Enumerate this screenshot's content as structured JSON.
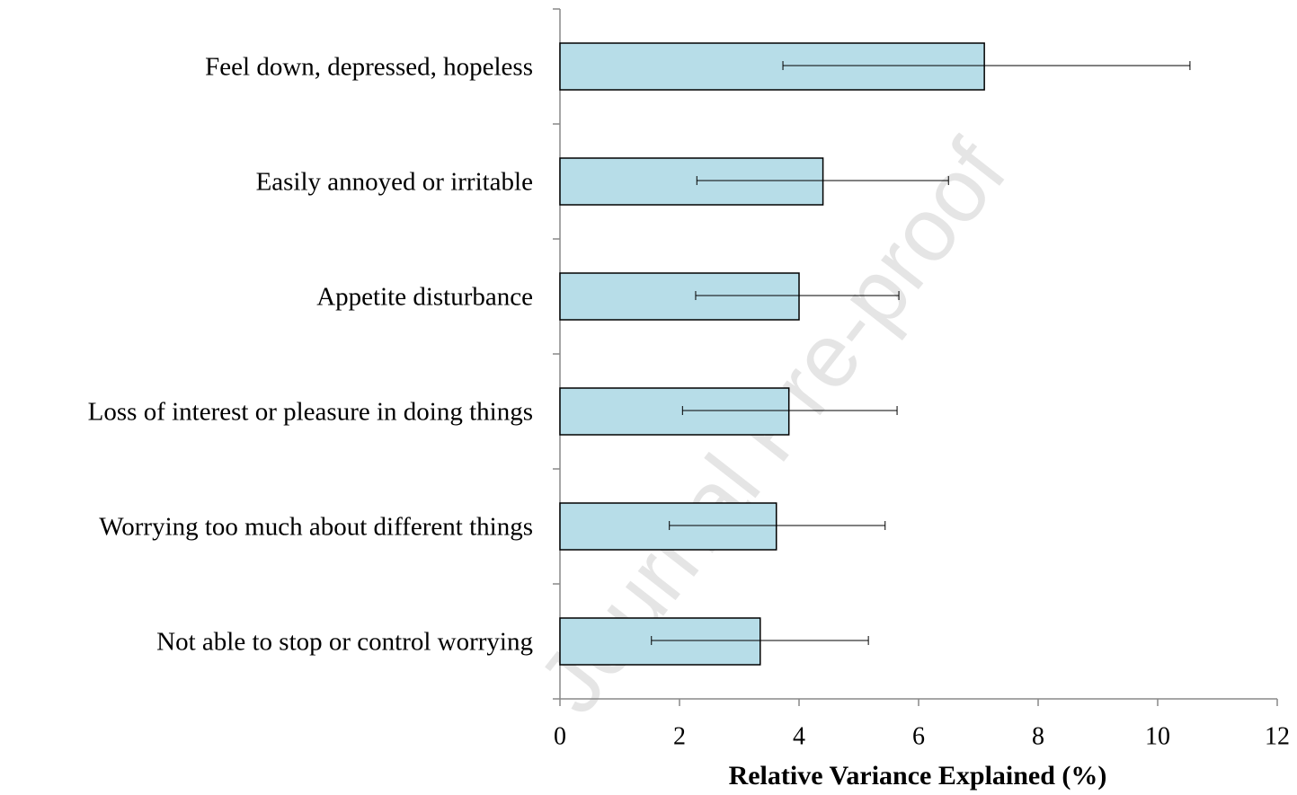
{
  "chart_data": {
    "type": "barh",
    "xlabel": "Relative Variance Explained (%)",
    "watermark": "Journal Pre-proof",
    "categories": [
      "Feel down, depressed, hopeless",
      "Easily annoyed or irritable",
      "Appetite disturbance",
      "Loss of interest or pleasure in doing things",
      "Worrying too much about different things",
      "Not able to stop or control worrying"
    ],
    "values": [
      7.1,
      4.4,
      4.0,
      3.83,
      3.62,
      3.35
    ],
    "ci_lower": [
      3.73,
      2.29,
      2.27,
      2.05,
      1.83,
      1.53
    ],
    "ci_upper": [
      10.54,
      6.5,
      5.67,
      5.64,
      5.44,
      5.16
    ],
    "color": "#b7dde8",
    "xlim": [
      0,
      12
    ],
    "xticks": [
      0,
      2,
      4,
      6,
      8,
      10,
      12
    ]
  }
}
